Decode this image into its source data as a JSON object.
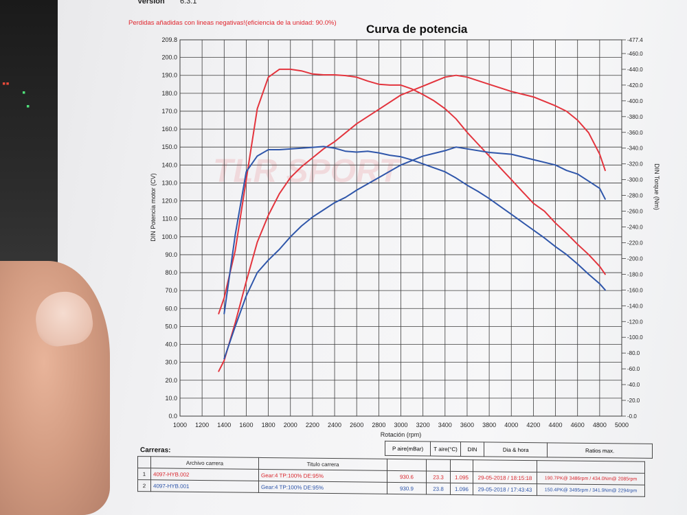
{
  "header": {
    "version_label": "Versión",
    "version_value": "6.3.1",
    "note": "Perdidas añadidas con lineas negativas!(eficiencia de la unidad: 90.0%)",
    "title": "Curva de potencia"
  },
  "watermark": "TLR SPORT",
  "colors": {
    "run1": "#e3343d",
    "run2": "#2f56aa",
    "grid": "#3a3a3a",
    "note": "#e0242c"
  },
  "chart_data": {
    "type": "line",
    "title": "Curva de potencia",
    "xlabel": "Rotación (rpm)",
    "ylabel": "DIN Potencia motor (CV)",
    "y2label": "DIN Torque (Nm)",
    "xlim": [
      1000,
      5000
    ],
    "ylim": [
      0,
      209.8
    ],
    "y2lim": [
      0,
      477.4
    ],
    "grid": true,
    "x_ticks": [
      "1000",
      "1200",
      "1400",
      "1600",
      "1800",
      "2000",
      "2200",
      "2400",
      "2600",
      "2800",
      "3000",
      "3200",
      "3400",
      "3600",
      "3800",
      "4000",
      "4200",
      "4400",
      "4600",
      "4800",
      "5000"
    ],
    "y_ticks": [
      "0.0",
      "10.0",
      "20.0",
      "30.0",
      "40.0",
      "50.0",
      "60.0",
      "70.0",
      "80.0",
      "90.0",
      "100.0",
      "110.0",
      "120.0",
      "130.0",
      "140.0",
      "150.0",
      "160.0",
      "170.0",
      "180.0",
      "190.0",
      "200.0",
      "209.8"
    ],
    "y2_ticks": [
      "0.0",
      "20.0",
      "40.0",
      "60.0",
      "80.0",
      "100.0",
      "120.0",
      "140.0",
      "160.0",
      "180.0",
      "200.0",
      "220.0",
      "240.0",
      "260.0",
      "280.0",
      "300.0",
      "320.0",
      "340.0",
      "360.0",
      "380.0",
      "400.0",
      "420.0",
      "440.0",
      "460.0",
      "477.4"
    ],
    "series": [
      {
        "run": "1",
        "quantity": "torque",
        "axis": "right",
        "color": "#e3343d",
        "x": [
          1350,
          1400,
          1500,
          1600,
          1700,
          1800,
          1900,
          2000,
          2100,
          2200,
          2300,
          2400,
          2500,
          2600,
          2700,
          2800,
          2900,
          3000,
          3100,
          3200,
          3300,
          3400,
          3500,
          3600,
          3700,
          3800,
          3900,
          4000,
          4100,
          4200,
          4300,
          4400,
          4500,
          4600,
          4700,
          4800,
          4850
        ],
        "values": [
          130,
          150,
          210,
          300,
          390,
          430,
          440,
          440,
          438,
          434,
          433,
          433,
          432,
          430,
          425,
          421,
          420,
          420,
          415,
          408,
          400,
          390,
          377,
          360,
          345,
          330,
          315,
          300,
          285,
          270,
          260,
          245,
          232,
          218,
          205,
          190,
          180
        ]
      },
      {
        "run": "1",
        "quantity": "power",
        "axis": "left",
        "color": "#e3343d",
        "x": [
          1350,
          1400,
          1500,
          1600,
          1700,
          1800,
          1900,
          2000,
          2100,
          2200,
          2300,
          2400,
          2500,
          2600,
          2800,
          3000,
          3200,
          3400,
          3500,
          3600,
          3800,
          4000,
          4200,
          4400,
          4500,
          4600,
          4700,
          4800,
          4850
        ],
        "values": [
          25,
          31,
          52,
          75,
          97,
          112,
          124,
          133,
          139,
          144,
          149,
          153,
          158,
          163,
          171,
          179,
          184,
          189,
          190,
          189,
          185,
          181,
          178,
          173,
          170,
          165,
          158,
          146,
          137
        ]
      },
      {
        "run": "2",
        "quantity": "torque",
        "axis": "right",
        "color": "#2f56aa",
        "x": [
          1400,
          1500,
          1600,
          1700,
          1800,
          1900,
          2000,
          2100,
          2200,
          2300,
          2400,
          2500,
          2600,
          2700,
          2800,
          2900,
          3000,
          3100,
          3200,
          3300,
          3400,
          3500,
          3600,
          3700,
          3800,
          3900,
          4000,
          4100,
          4200,
          4300,
          4400,
          4500,
          4600,
          4700,
          4800,
          4850
        ],
        "values": [
          130,
          230,
          310,
          330,
          338,
          338,
          339,
          340,
          341,
          342,
          340,
          336,
          335,
          336,
          334,
          331,
          329,
          325,
          320,
          315,
          310,
          302,
          293,
          285,
          276,
          266,
          256,
          246,
          236,
          226,
          215,
          205,
          193,
          180,
          168,
          160
        ]
      },
      {
        "run": "2",
        "quantity": "power",
        "axis": "left",
        "color": "#2f56aa",
        "x": [
          1400,
          1500,
          1600,
          1700,
          1800,
          1900,
          2000,
          2100,
          2200,
          2300,
          2400,
          2500,
          2600,
          2800,
          3000,
          3200,
          3400,
          3500,
          3600,
          3800,
          4000,
          4200,
          4400,
          4500,
          4600,
          4700,
          4800,
          4850
        ],
        "values": [
          32,
          50,
          67,
          80,
          87,
          93,
          100,
          106,
          111,
          115,
          119,
          122,
          126,
          133,
          140,
          145,
          148,
          150,
          149,
          147,
          146,
          143,
          140,
          137,
          135,
          131,
          127,
          121
        ]
      }
    ]
  },
  "table": {
    "carreras_label": "Carreras:",
    "headers": {
      "archivo": "Archivo carrera",
      "titulo": "Titulo carrera",
      "p_aire": "P aire(mBar)",
      "t_aire": "T aire(°C)",
      "din": "DIN",
      "fecha": "Dia & hora",
      "ratios": "Ratios max."
    },
    "rows": [
      {
        "num": "1",
        "archivo": "4097-HYB.002",
        "titulo": "Gear:4 TP:100% DE:95%",
        "p_aire": "930.6",
        "t_aire": "23.3",
        "din": "1.095",
        "fecha": "29-05-2018 / 18:15:18",
        "ratios": "190.7PK@ 3486rpm / 434.0Nm@ 2085rpm"
      },
      {
        "num": "2",
        "archivo": "4097-HYB.001",
        "titulo": "Gear:4 TP:100% DE:95%",
        "p_aire": "930.9",
        "t_aire": "23.8",
        "din": "1.096",
        "fecha": "29-05-2018 / 17:43:43",
        "ratios": "150.4PK@ 3495rpm / 341.9Nm@ 2294rpm"
      }
    ]
  }
}
